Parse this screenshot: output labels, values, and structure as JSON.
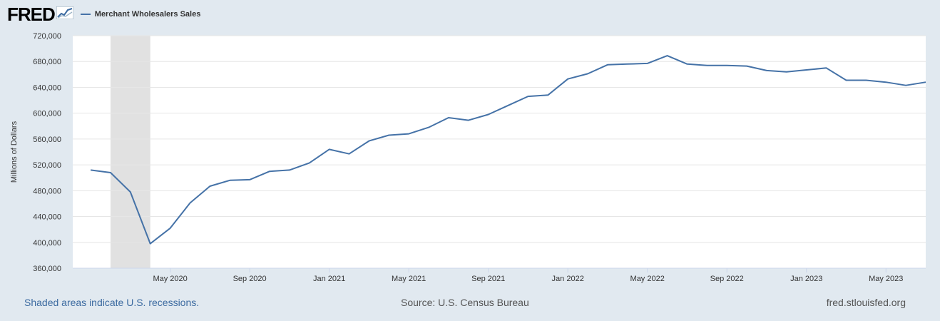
{
  "brand": {
    "logo_text": "FRED",
    "logo_icon": "fred-chart-icon"
  },
  "chart_data": {
    "type": "line",
    "series": [
      {
        "name": "Merchant Wholesalers Sales",
        "color": "#4572a7",
        "x": [
          "2020-01",
          "2020-02",
          "2020-03",
          "2020-04",
          "2020-05",
          "2020-06",
          "2020-07",
          "2020-08",
          "2020-09",
          "2020-10",
          "2020-11",
          "2020-12",
          "2021-01",
          "2021-02",
          "2021-03",
          "2021-04",
          "2021-05",
          "2021-06",
          "2021-07",
          "2021-08",
          "2021-09",
          "2021-10",
          "2021-11",
          "2021-12",
          "2022-01",
          "2022-02",
          "2022-03",
          "2022-04",
          "2022-05",
          "2022-06",
          "2022-07",
          "2022-08",
          "2022-09",
          "2022-10",
          "2022-11",
          "2022-12",
          "2023-01",
          "2023-02",
          "2023-03",
          "2023-04",
          "2023-05",
          "2023-06",
          "2023-07"
        ],
        "values": [
          512000,
          508000,
          478000,
          398000,
          422000,
          461000,
          487000,
          496000,
          497000,
          510000,
          512000,
          523000,
          544000,
          537000,
          557000,
          566000,
          568000,
          578000,
          593000,
          589000,
          598000,
          612000,
          626000,
          628000,
          653000,
          661000,
          675000,
          676000,
          677000,
          689000,
          676000,
          674000,
          674000,
          673000,
          666000,
          664000,
          667000,
          670000,
          651000,
          651000,
          648000,
          643000,
          648000
        ]
      }
    ],
    "ylabel": "Millions of Dollars",
    "ylim": [
      360000,
      720000
    ],
    "yticks": [
      "360,000",
      "400,000",
      "440,000",
      "480,000",
      "520,000",
      "560,000",
      "600,000",
      "640,000",
      "680,000",
      "720,000"
    ],
    "xticks": [
      {
        "x": "2020-05",
        "label": "May 2020"
      },
      {
        "x": "2020-09",
        "label": "Sep 2020"
      },
      {
        "x": "2021-01",
        "label": "Jan 2021"
      },
      {
        "x": "2021-05",
        "label": "May 2021"
      },
      {
        "x": "2021-09",
        "label": "Sep 2021"
      },
      {
        "x": "2022-01",
        "label": "Jan 2022"
      },
      {
        "x": "2022-05",
        "label": "May 2022"
      },
      {
        "x": "2022-09",
        "label": "Sep 2022"
      },
      {
        "x": "2023-01",
        "label": "Jan 2023"
      },
      {
        "x": "2023-05",
        "label": "May 2023"
      }
    ],
    "recessions": [
      {
        "start": "2020-02",
        "end": "2020-04"
      }
    ],
    "grid": true
  },
  "footer": {
    "recession_note": "Shaded areas indicate U.S. recessions.",
    "source": "Source: U.S. Census Bureau",
    "site": "fred.stlouisfed.org"
  }
}
